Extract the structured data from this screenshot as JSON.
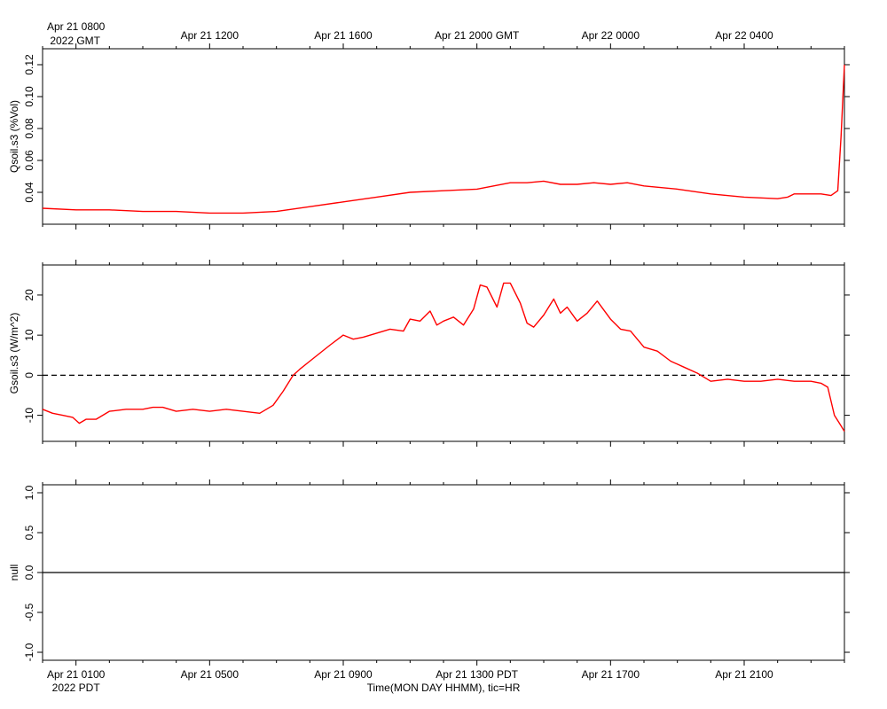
{
  "figure": {
    "top_axis": {
      "ticks": [
        "Apr 21 0800",
        "Apr 21 1200",
        "Apr 21 1600",
        "Apr 21 2000 GMT",
        "Apr 22 0000",
        "Apr 22 0400"
      ],
      "year_label": "2022 GMT"
    },
    "bottom_axis": {
      "ticks": [
        "Apr 21 0100",
        "Apr 21 0500",
        "Apr 21 0900",
        "Apr 21 1300 PDT",
        "Apr 21 1700",
        "Apr 21 2100"
      ],
      "year_label": "2022 PDT",
      "title": "Time(MON DAY HHMM), tic=HR"
    },
    "colors": {
      "series": "#ff0000",
      "axis": "#000000"
    }
  },
  "chart_data": [
    {
      "type": "line",
      "ylabel": "Qsoil.s3 (%Vol)",
      "ylim": [
        0.02,
        0.13
      ],
      "yticks": [
        0.04,
        0.06,
        0.08,
        0.1,
        0.12
      ],
      "ytick_labels": [
        "0.04",
        "0.06",
        "0.08",
        "0.10",
        "0.12"
      ],
      "x_hours": [
        0,
        1,
        2,
        3,
        4,
        5,
        6,
        7,
        8,
        9,
        10,
        11,
        12,
        13,
        14,
        14.5,
        15,
        15.5,
        16,
        16.5,
        17,
        17.5,
        18,
        19,
        20,
        21,
        22,
        22.3,
        22.5,
        23,
        23.3,
        23.6,
        23.8,
        23.9,
        24
      ],
      "values": [
        0.03,
        0.029,
        0.029,
        0.028,
        0.028,
        0.027,
        0.027,
        0.028,
        0.031,
        0.034,
        0.037,
        0.04,
        0.041,
        0.042,
        0.046,
        0.046,
        0.047,
        0.045,
        0.045,
        0.046,
        0.045,
        0.046,
        0.044,
        0.042,
        0.039,
        0.037,
        0.036,
        0.037,
        0.039,
        0.039,
        0.039,
        0.038,
        0.041,
        0.075,
        0.12
      ]
    },
    {
      "type": "line",
      "ylabel": "Gsoil.s3 (W/m^2)",
      "ylim": [
        -16.5,
        27.5
      ],
      "yticks": [
        -10,
        0,
        10,
        20
      ],
      "ytick_labels": [
        "-10",
        "0",
        "10",
        "20"
      ],
      "reference_line": {
        "y": 0,
        "style": "dashed"
      },
      "x_hours": [
        0,
        0.3,
        0.6,
        0.9,
        1.1,
        1.3,
        1.6,
        2.0,
        2.5,
        3.0,
        3.3,
        3.6,
        4.0,
        4.5,
        5.0,
        5.5,
        6.0,
        6.5,
        6.9,
        7.2,
        7.5,
        7.7,
        8.0,
        8.3,
        8.6,
        9.0,
        9.3,
        9.6,
        10.0,
        10.4,
        10.8,
        11.0,
        11.3,
        11.6,
        11.8,
        12.0,
        12.3,
        12.6,
        12.9,
        13.1,
        13.3,
        13.6,
        13.8,
        14.0,
        14.3,
        14.5,
        14.7,
        15.0,
        15.3,
        15.5,
        15.7,
        16.0,
        16.3,
        16.6,
        17.0,
        17.3,
        17.6,
        18.0,
        18.4,
        18.8,
        19.2,
        19.6,
        20.0,
        20.5,
        21.0,
        21.5,
        22.0,
        22.5,
        23.0,
        23.3,
        23.5,
        23.7,
        23.85,
        24
      ],
      "values": [
        -8.5,
        -9.5,
        -10.0,
        -10.5,
        -12.0,
        -11.0,
        -11.0,
        -9.0,
        -8.5,
        -8.5,
        -8.0,
        -8.0,
        -9.0,
        -8.5,
        -9.0,
        -8.5,
        -9.0,
        -9.5,
        -7.5,
        -4.0,
        0.0,
        1.5,
        3.5,
        5.5,
        7.5,
        10.0,
        9.0,
        9.5,
        10.5,
        11.5,
        11.0,
        14.0,
        13.5,
        16.0,
        12.5,
        13.5,
        14.5,
        12.5,
        16.5,
        22.5,
        22.0,
        17.0,
        23.0,
        23.0,
        18.0,
        13.0,
        12.0,
        15.0,
        19.0,
        15.5,
        17.0,
        13.5,
        15.5,
        18.5,
        14.0,
        11.5,
        11.0,
        7.0,
        6.0,
        3.5,
        2.0,
        0.5,
        -1.5,
        -1.0,
        -1.5,
        -1.5,
        -1.0,
        -1.5,
        -1.5,
        -2.0,
        -3.0,
        -10.0,
        -12.0,
        -14.0
      ]
    },
    {
      "type": "line",
      "ylabel": "null",
      "ylim": [
        -1.1,
        1.1
      ],
      "yticks": [
        -1.0,
        -0.5,
        0.0,
        0.5,
        1.0
      ],
      "ytick_labels": [
        "-1.0",
        "-0.5",
        "0.0",
        "0.5",
        "1.0"
      ],
      "x_hours": [
        0,
        24
      ],
      "values": [
        0,
        0
      ]
    }
  ]
}
